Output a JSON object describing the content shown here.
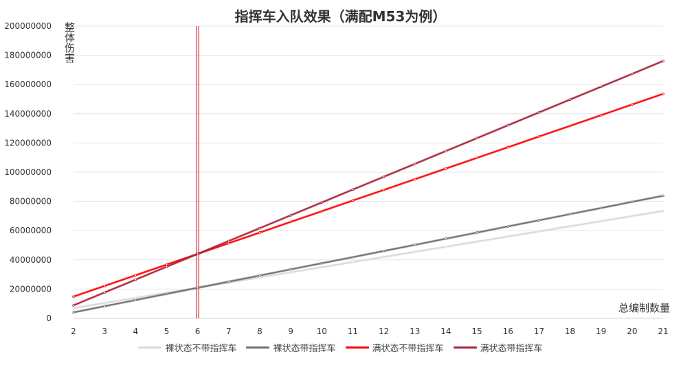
{
  "chart_data": {
    "type": "line",
    "title": "指挥车入队效果（满配M53为例）",
    "xlabel": "总编制数量",
    "ylabel": "整体伤害",
    "x": [
      2,
      3,
      4,
      5,
      6,
      7,
      8,
      9,
      10,
      11,
      12,
      13,
      14,
      15,
      16,
      17,
      18,
      19,
      20,
      21
    ],
    "xlim": [
      2,
      21
    ],
    "ylim": [
      0,
      200000000
    ],
    "yticks": [
      "0",
      "20000000",
      "40000000",
      "60000000",
      "80000000",
      "100000000",
      "120000000",
      "140000000",
      "160000000",
      "180000000",
      "200000000"
    ],
    "grid": true,
    "legend_position": "bottom",
    "reference_line_x": 6,
    "series": [
      {
        "name": "裸状态不带指挥车",
        "color": "#d9d9d9",
        "values": [
          7000000,
          10500000,
          14000000,
          17500000,
          21000000,
          24500000,
          28000000,
          31500000,
          35000000,
          38500000,
          42000000,
          45500000,
          49000000,
          52500000,
          56000000,
          59500000,
          63000000,
          66500000,
          70000000,
          73500000
        ]
      },
      {
        "name": "裸状态带指挥车",
        "color": "#6f6f6f",
        "values": [
          4100000,
          8300000,
          12500000,
          16700000,
          20900000,
          25100000,
          29300000,
          33500000,
          37700000,
          41900000,
          46100000,
          50300000,
          54500000,
          58700000,
          62900000,
          67100000,
          71300000,
          75500000,
          79700000,
          83900000
        ]
      },
      {
        "name": "满状态不带指挥车",
        "color": "#ff0000",
        "values": [
          14900000,
          22200000,
          29500000,
          36800000,
          44100000,
          51400000,
          58700000,
          66000000,
          73300000,
          80600000,
          87900000,
          95200000,
          102500000,
          109800000,
          117100000,
          124400000,
          131700000,
          139000000,
          146300000,
          153600000
        ]
      },
      {
        "name": "满状态带指挥车",
        "color": "#a8233a",
        "values": [
          8900000,
          17700000,
          26500000,
          35300000,
          44100000,
          52900000,
          61700000,
          70500000,
          79300000,
          88100000,
          96900000,
          105700000,
          114500000,
          123300000,
          132100000,
          140900000,
          149700000,
          158500000,
          167300000,
          176100000
        ]
      }
    ]
  }
}
